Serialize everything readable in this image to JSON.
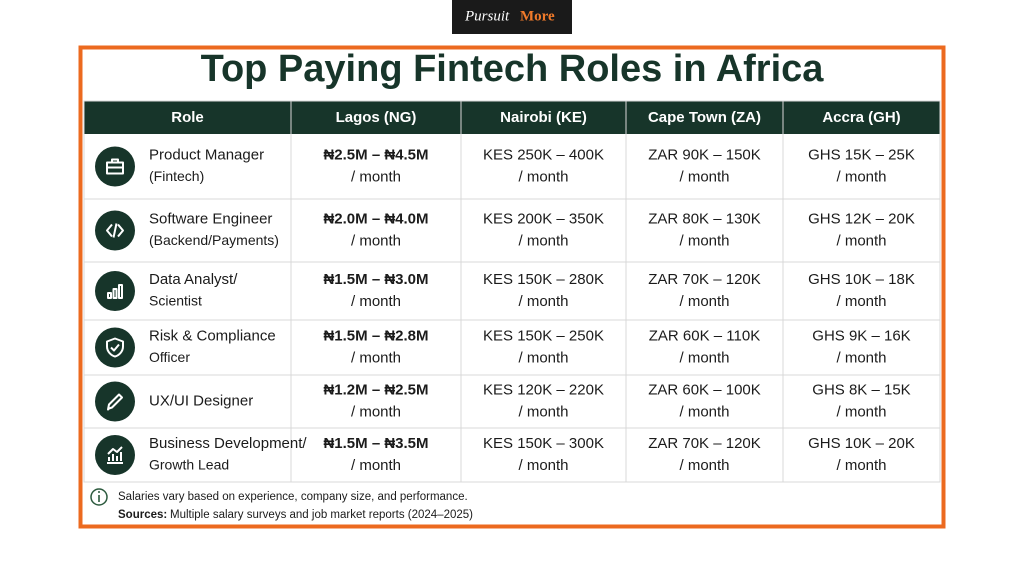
{
  "header": {
    "logo": [
      "Pursuit",
      "More"
    ],
    "title": "Top Paying Fintech Roles in Africa"
  },
  "table": {
    "columns": [
      "Role",
      "Lagos (NG)",
      "Nairobi (KE)",
      "Cape Town (ZA)",
      "Accra (GH)"
    ],
    "rows": [
      {
        "role": [
          "Product Manager",
          "(Fintech)"
        ],
        "cells": [
          [
            "₦2.5M – ₦4.5M",
            "/ month"
          ],
          [
            "KES 250K – 400K",
            "/ month"
          ],
          [
            "ZAR 90K – 150K",
            "/ month"
          ],
          [
            "GHS 15K – 25K",
            "/ month"
          ]
        ]
      },
      {
        "role": [
          "Software Engineer",
          "(Backend/Payments)"
        ],
        "cells": [
          [
            "₦2.0M – ₦4.0M",
            "/ month"
          ],
          [
            "KES 200K – 350K",
            "/ month"
          ],
          [
            "ZAR 80K – 130K",
            "/ month"
          ],
          [
            "GHS 12K – 20K",
            "/ month"
          ]
        ]
      },
      {
        "role": [
          "Data Analyst/",
          "Scientist"
        ],
        "cells": [
          [
            "₦1.5M – ₦3.0M",
            "/ month"
          ],
          [
            "KES 150K – 280K",
            "/ month"
          ],
          [
            "ZAR 70K – 120K",
            "/ month"
          ],
          [
            "GHS 10K – 18K",
            "/ month"
          ]
        ]
      },
      {
        "role": [
          "Risk & Compliance",
          "Officer"
        ],
        "cells": [
          [
            "₦1.5M – ₦2.8M",
            "/ month"
          ],
          [
            "KES 150K – 250K",
            "/ month"
          ],
          [
            "ZAR 60K – 110K",
            "/ month"
          ],
          [
            "GHS 9K – 16K",
            "/ month"
          ]
        ]
      },
      {
        "role": [
          "UX/UI Designer"
        ],
        "cells": [
          [
            "₦1.2M – ₦2.5M",
            "/ month"
          ],
          [
            "KES 120K – 220K",
            "/ month"
          ],
          [
            "ZAR 60K – 100K",
            "/ month"
          ],
          [
            "GHS 8K – 15K",
            "/ month"
          ]
        ]
      },
      {
        "role": [
          "Business Development/",
          "Growth Lead"
        ],
        "cells": [
          [
            "₦1.5M – ₦3.5M",
            "/ month"
          ],
          [
            "KES 150K – 300K",
            "/ month"
          ],
          [
            "ZAR 70K – 120K",
            "/ month"
          ],
          [
            "GHS 10K – 20K",
            "/ month"
          ]
        ]
      }
    ]
  },
  "footer": {
    "note": "Salaries vary based on experience, company size, and performance.",
    "sources_label": "Sources:",
    "sources": "Multiple salary surveys and job market reports (2024–2025)"
  }
}
